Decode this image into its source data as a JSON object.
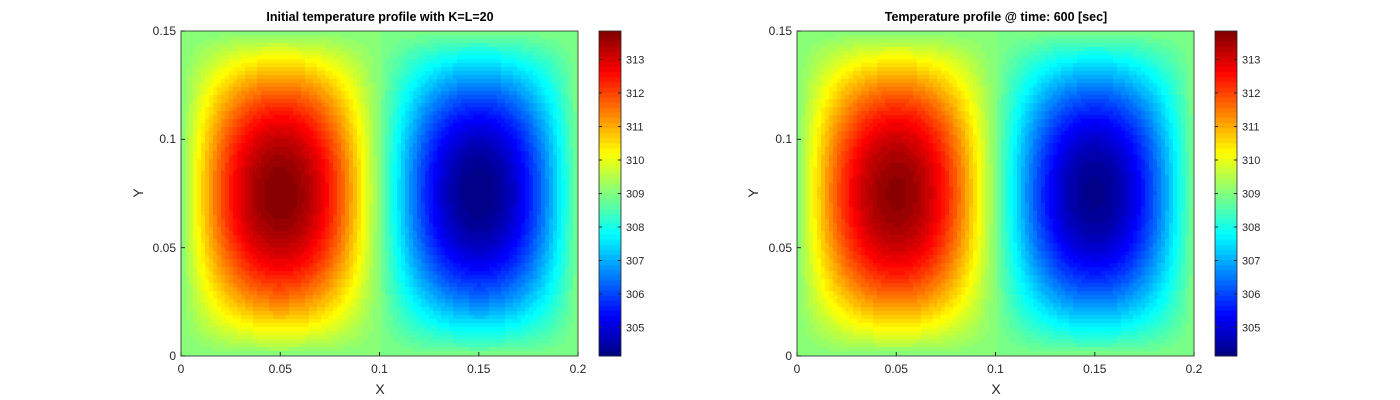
{
  "chart_data": [
    {
      "type": "heatmap",
      "subtype": "filled-contour",
      "title": "Initial temperature profile with K=L=20",
      "xlabel": "X",
      "ylabel": "Y",
      "xlim": [
        0,
        0.2
      ],
      "ylim": [
        0,
        0.15
      ],
      "xticks": [
        "0",
        "0.05",
        "0.1",
        "0.15",
        "0.2"
      ],
      "yticks": [
        "0",
        "0.05",
        "0.1",
        "0.15"
      ],
      "colormap": "jet",
      "clim": [
        304.15,
        313.85
      ],
      "colorbar_ticks": [
        "305",
        "306",
        "307",
        "308",
        "309",
        "310",
        "311",
        "312",
        "313"
      ],
      "field": {
        "base": 309,
        "amplitude": 4.85,
        "hot_center": [
          0.05,
          0.075
        ],
        "cold_center": [
          0.15,
          0.075
        ],
        "hot_max": 313.85,
        "cold_min": 304.15
      }
    },
    {
      "type": "heatmap",
      "subtype": "filled-contour",
      "title": "Temperature profile @ time: 600 [sec]",
      "xlabel": "X",
      "ylabel": "Y",
      "xlim": [
        0,
        0.2
      ],
      "ylim": [
        0,
        0.15
      ],
      "xticks": [
        "0",
        "0.05",
        "0.1",
        "0.15",
        "0.2"
      ],
      "yticks": [
        "0",
        "0.05",
        "0.1",
        "0.15"
      ],
      "colormap": "jet",
      "clim": [
        304.15,
        313.85
      ],
      "colorbar_ticks": [
        "305",
        "306",
        "307",
        "308",
        "309",
        "310",
        "311",
        "312",
        "313"
      ],
      "field": {
        "base": 309,
        "amplitude": 4.75,
        "hot_center": [
          0.05,
          0.075
        ],
        "cold_center": [
          0.15,
          0.075
        ],
        "hot_max": 313.75,
        "cold_min": 304.25
      }
    }
  ]
}
